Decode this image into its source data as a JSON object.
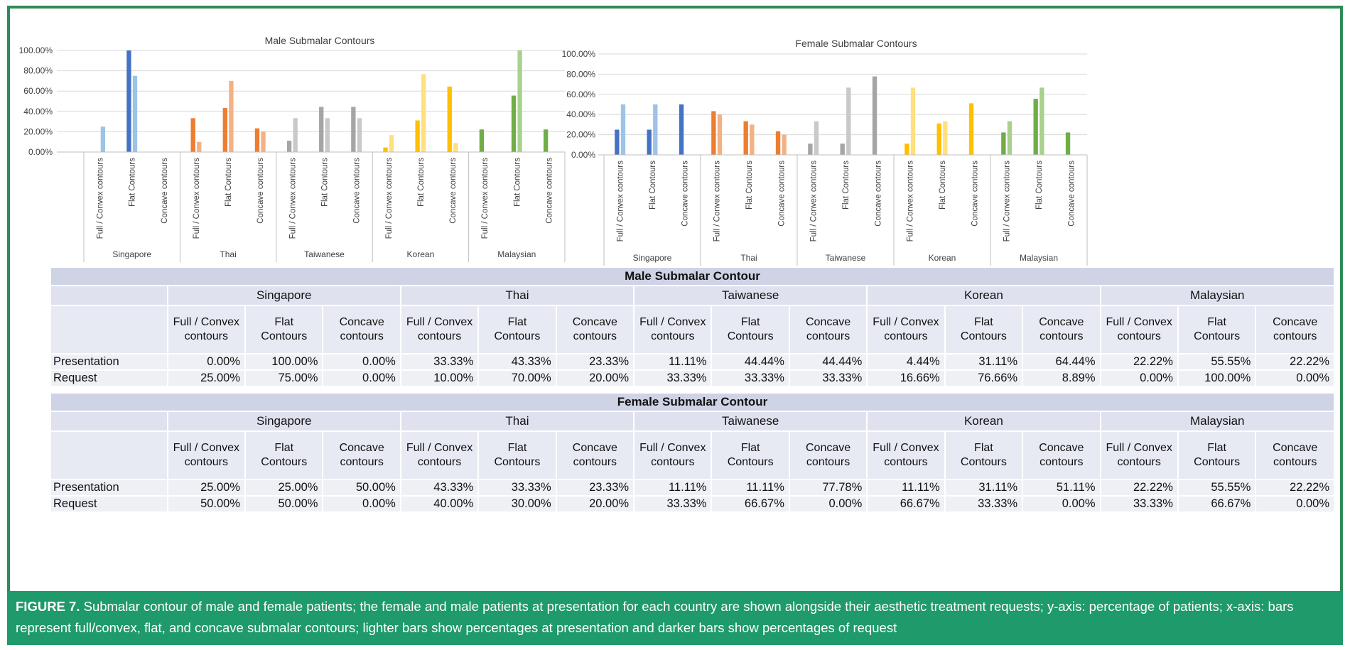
{
  "chart_data": [
    {
      "type": "bar",
      "title": "Male Submalar Contours",
      "ylim": [
        0,
        100
      ],
      "yticks": [
        "0.00%",
        "20.00%",
        "40.00%",
        "60.00%",
        "80.00%",
        "100.00%"
      ],
      "groups": [
        "Singapore",
        "Thai",
        "Taiwanese",
        "Korean",
        "Malaysian"
      ],
      "categories": [
        "Full / Convex contours",
        "Flat Contours",
        "Concave contours"
      ],
      "series": [
        {
          "role": "presentation",
          "values": [
            [
              0,
              100,
              0
            ],
            [
              33.33,
              43.33,
              23.33
            ],
            [
              11.11,
              44.44,
              44.44
            ],
            [
              4.44,
              31.11,
              64.44
            ],
            [
              22.22,
              55.55,
              22.22
            ]
          ]
        },
        {
          "role": "request",
          "values": [
            [
              25,
              75,
              0
            ],
            [
              10,
              70,
              20
            ],
            [
              33.33,
              33.33,
              33.33
            ],
            [
              16.66,
              76.66,
              8.89
            ],
            [
              0,
              100,
              0
            ]
          ]
        }
      ],
      "colors": {
        "dark": [
          "#4472c4",
          "#ed7d31",
          "#a5a5a5",
          "#ffc000",
          "#70ad47"
        ],
        "light": [
          "#9dc3e6",
          "#f4b183",
          "#c9c9c9",
          "#ffe07f",
          "#a9d18e"
        ]
      },
      "grid": true,
      "legend": "none"
    },
    {
      "type": "bar",
      "title": "Female Submalar Contours",
      "ylim": [
        0,
        100
      ],
      "yticks": [
        "0.00%",
        "20.00%",
        "40.00%",
        "60.00%",
        "80.00%",
        "100.00%"
      ],
      "groups": [
        "Singapore",
        "Thai",
        "Taiwanese",
        "Korean",
        "Malaysian"
      ],
      "categories": [
        "Full / Convex contours",
        "Flat Contours",
        "Concave contours"
      ],
      "series": [
        {
          "role": "presentation",
          "values": [
            [
              25,
              25,
              50
            ],
            [
              43.33,
              33.33,
              23.33
            ],
            [
              11.11,
              11.11,
              77.78
            ],
            [
              11.11,
              31.11,
              51.11
            ],
            [
              22.22,
              55.55,
              22.22
            ]
          ]
        },
        {
          "role": "request",
          "values": [
            [
              50,
              50,
              0
            ],
            [
              40,
              30,
              20
            ],
            [
              33.33,
              66.67,
              0
            ],
            [
              66.67,
              33.33,
              0
            ],
            [
              33.33,
              66.67,
              0
            ]
          ]
        }
      ],
      "colors": {
        "dark": [
          "#4472c4",
          "#ed7d31",
          "#a5a5a5",
          "#ffc000",
          "#70ad47"
        ],
        "light": [
          "#9dc3e6",
          "#f4b183",
          "#c9c9c9",
          "#ffe07f",
          "#a9d18e"
        ]
      },
      "grid": true,
      "legend": "none"
    }
  ],
  "tables": [
    {
      "title": "Male Submalar Contour",
      "countries": [
        "Singapore",
        "Thai",
        "Taiwanese",
        "Korean",
        "Malaysian"
      ],
      "subheaders": [
        "Full / Convex contours",
        "Flat Contours",
        "Concave contours"
      ],
      "rows": [
        {
          "label": "Presentation",
          "values": [
            "0.00%",
            "100.00%",
            "0.00%",
            "33.33%",
            "43.33%",
            "23.33%",
            "11.11%",
            "44.44%",
            "44.44%",
            "4.44%",
            "31.11%",
            "64.44%",
            "22.22%",
            "55.55%",
            "22.22%"
          ]
        },
        {
          "label": "Request",
          "values": [
            "25.00%",
            "75.00%",
            "0.00%",
            "10.00%",
            "70.00%",
            "20.00%",
            "33.33%",
            "33.33%",
            "33.33%",
            "16.66%",
            "76.66%",
            "8.89%",
            "0.00%",
            "100.00%",
            "0.00%"
          ]
        }
      ]
    },
    {
      "title": "Female Submalar Contour",
      "countries": [
        "Singapore",
        "Thai",
        "Taiwanese",
        "Korean",
        "Malaysian"
      ],
      "subheaders": [
        "Full / Convex contours",
        "Flat Contours",
        "Concave contours"
      ],
      "rows": [
        {
          "label": "Presentation",
          "values": [
            "25.00%",
            "25.00%",
            "50.00%",
            "43.33%",
            "33.33%",
            "23.33%",
            "11.11%",
            "11.11%",
            "77.78%",
            "11.11%",
            "31.11%",
            "51.11%",
            "22.22%",
            "55.55%",
            "22.22%"
          ]
        },
        {
          "label": "Request",
          "values": [
            "50.00%",
            "50.00%",
            "0.00%",
            "40.00%",
            "30.00%",
            "20.00%",
            "33.33%",
            "66.67%",
            "0.00%",
            "66.67%",
            "33.33%",
            "0.00%",
            "33.33%",
            "66.67%",
            "0.00%"
          ]
        }
      ]
    }
  ],
  "caption": {
    "label": "FIGURE 7.",
    "text": " Submalar contour of male and female patients; the female and male patients at presentation for each country are shown alongside their aesthetic treatment requests; y-axis: percentage of patients; x-axis: bars represent full/convex, flat, and concave submalar contours; lighter bars show percentages at presentation and darker bars show percentages of request"
  }
}
